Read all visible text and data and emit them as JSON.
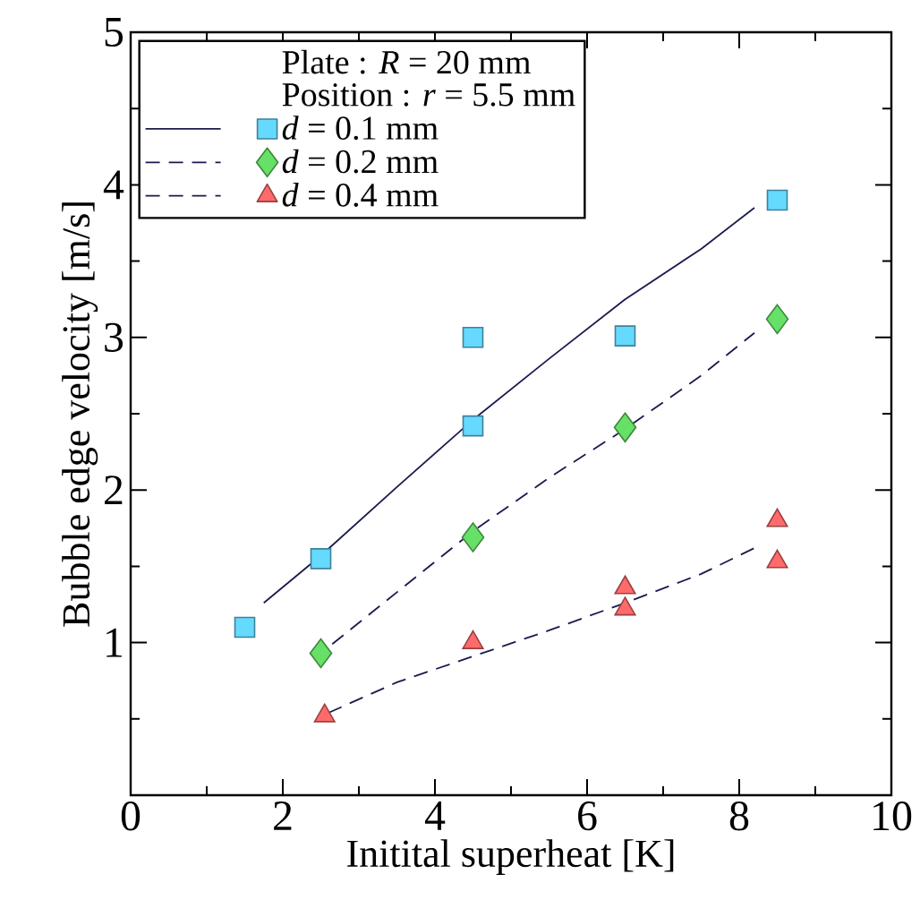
{
  "chart_data": {
    "type": "scatter",
    "xlabel": "Initital superheat [K]",
    "ylabel": "Bubble edge velocity [m/s]",
    "annotations": [
      "Plate : *R* = 20 mm",
      "Position : *r* = 5.5 mm"
    ],
    "xlim": [
      0,
      10
    ],
    "ylim": [
      0,
      5
    ],
    "xticks": [
      0,
      2,
      4,
      6,
      8,
      10
    ],
    "yticks": [
      {
        "value": 0,
        "label": null
      },
      1,
      2,
      3,
      4,
      5
    ],
    "grid": false,
    "legend": "top left",
    "series": [
      {
        "name": "*d* = 0.1 mm",
        "marker": "square",
        "color": "#66d9ff",
        "x": [
          1.5,
          2.5,
          4.5,
          4.5,
          6.5,
          8.5
        ],
        "values": [
          1.1,
          1.55,
          2.42,
          3.0,
          3.01,
          3.9
        ]
      },
      {
        "name": "*d* = 0.2 mm",
        "marker": "diamond",
        "color": "#66e066",
        "x": [
          2.5,
          4.5,
          6.5,
          8.5
        ],
        "values": [
          0.93,
          1.69,
          2.41,
          3.12
        ]
      },
      {
        "name": "*d* = 0.4 mm",
        "marker": "triangle",
        "color": "#ff6b6b",
        "x": [
          2.55,
          4.5,
          6.5,
          6.5,
          8.5,
          8.5
        ],
        "values": [
          0.52,
          1.0,
          1.36,
          1.22,
          1.8,
          1.53
        ]
      },
      {
        "type": "line",
        "line_style": "solid",
        "color": "#1a1a4e",
        "x": [
          1.75,
          2.5,
          3.5,
          4.5,
          5.5,
          6.5,
          7.5,
          8.2
        ],
        "values": [
          1.26,
          1.57,
          2.02,
          2.46,
          2.86,
          3.25,
          3.58,
          3.85
        ]
      },
      {
        "type": "line",
        "line_style": "dashed",
        "color": "#1a1a4e",
        "x": [
          2.65,
          3.5,
          4.5,
          5.5,
          6.5,
          7.5,
          8.2
        ],
        "values": [
          0.99,
          1.33,
          1.73,
          2.08,
          2.4,
          2.75,
          3.03
        ]
      },
      {
        "type": "line",
        "line_style": "dashed",
        "color": "#1a1a4e",
        "x": [
          2.6,
          3.5,
          4.5,
          5.5,
          6.5,
          7.5,
          8.2
        ],
        "values": [
          0.54,
          0.74,
          0.91,
          1.08,
          1.26,
          1.45,
          1.62
        ]
      }
    ]
  }
}
